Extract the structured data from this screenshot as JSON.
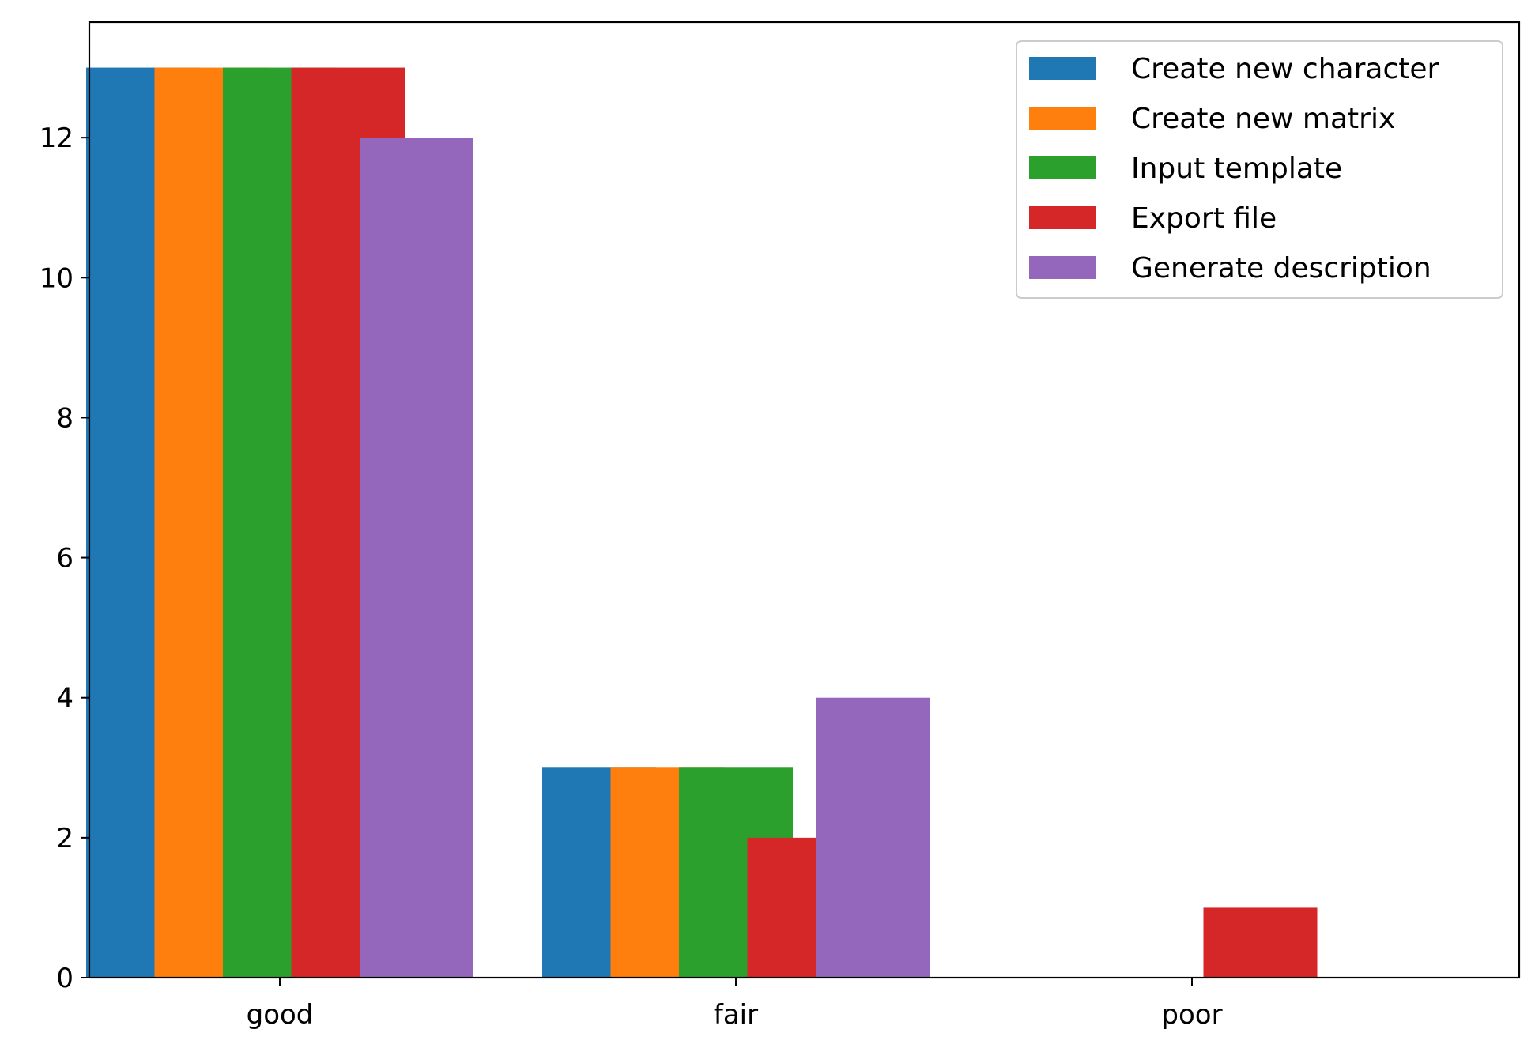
{
  "chart_data": {
    "type": "bar",
    "title": "",
    "xlabel": "",
    "ylabel": "",
    "categories": [
      "good",
      "fair",
      "poor"
    ],
    "series": [
      {
        "name": "Create new character",
        "color": "#1f77b4",
        "values": [
          13,
          3,
          0
        ]
      },
      {
        "name": "Create new matrix",
        "color": "#ff7f0e",
        "values": [
          13,
          3,
          0
        ]
      },
      {
        "name": "Input template",
        "color": "#2ca02c",
        "values": [
          13,
          3,
          0
        ]
      },
      {
        "name": "Export file",
        "color": "#d62728",
        "values": [
          13,
          2,
          1
        ]
      },
      {
        "name": "Generate description",
        "color": "#9467bd",
        "values": [
          12,
          4,
          0
        ]
      }
    ],
    "ylim": [
      0,
      13.65
    ],
    "yticks": [
      0,
      2,
      4,
      6,
      8,
      10,
      12
    ],
    "grid": false,
    "legend_position": "top-right"
  }
}
